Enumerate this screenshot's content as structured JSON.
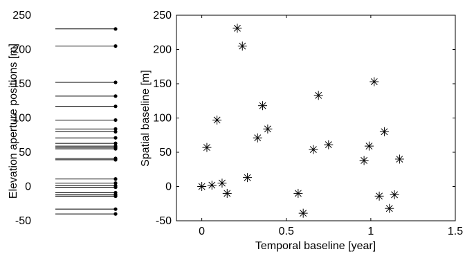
{
  "chart_data": [
    {
      "type": "line",
      "title": "",
      "xlabel": "",
      "ylabel": "Elevation aperture positions [m]",
      "ylim": [
        -50,
        250
      ],
      "yticks": [
        -50,
        0,
        50,
        100,
        150,
        200,
        250
      ],
      "ytick_labels": [
        "-50",
        "0",
        "50",
        "100",
        "150",
        "200",
        "250"
      ],
      "grid": false,
      "values": [
        230,
        205,
        152,
        132,
        117,
        97,
        84,
        80,
        71,
        63,
        59,
        57,
        55,
        41,
        39,
        11,
        5,
        1,
        -1,
        -9,
        -12,
        -14,
        -14,
        -33,
        -40
      ]
    },
    {
      "type": "scatter",
      "title": "",
      "xlabel": "Temporal baseline [year]",
      "ylabel": "Spatial baseline [m]",
      "xlim": [
        -0.15,
        1.5
      ],
      "ylim": [
        -50,
        250
      ],
      "xticks": [
        0,
        0.5,
        1,
        1.5
      ],
      "xtick_labels": [
        "0",
        "0.5",
        "1",
        "1.5"
      ],
      "yticks": [
        -50,
        0,
        50,
        100,
        150,
        200,
        250
      ],
      "ytick_labels": [
        "-50",
        "0",
        "50",
        "100",
        "150",
        "200",
        "250"
      ],
      "grid": false,
      "marker": "asterisk",
      "points": [
        {
          "x": 0.0,
          "y": 0
        },
        {
          "x": 0.03,
          "y": 57
        },
        {
          "x": 0.06,
          "y": 2
        },
        {
          "x": 0.09,
          "y": 97
        },
        {
          "x": 0.12,
          "y": 5
        },
        {
          "x": 0.15,
          "y": -10
        },
        {
          "x": 0.21,
          "y": 231
        },
        {
          "x": 0.24,
          "y": 205
        },
        {
          "x": 0.27,
          "y": 13
        },
        {
          "x": 0.33,
          "y": 71
        },
        {
          "x": 0.36,
          "y": 118
        },
        {
          "x": 0.39,
          "y": 84
        },
        {
          "x": 0.57,
          "y": -10
        },
        {
          "x": 0.6,
          "y": -39
        },
        {
          "x": 0.66,
          "y": 54
        },
        {
          "x": 0.69,
          "y": 133
        },
        {
          "x": 0.75,
          "y": 61
        },
        {
          "x": 0.96,
          "y": 38
        },
        {
          "x": 0.99,
          "y": 59
        },
        {
          "x": 1.02,
          "y": 153
        },
        {
          "x": 1.05,
          "y": -14
        },
        {
          "x": 1.08,
          "y": 80
        },
        {
          "x": 1.11,
          "y": -32
        },
        {
          "x": 1.14,
          "y": -12
        },
        {
          "x": 1.17,
          "y": 40
        }
      ]
    }
  ]
}
